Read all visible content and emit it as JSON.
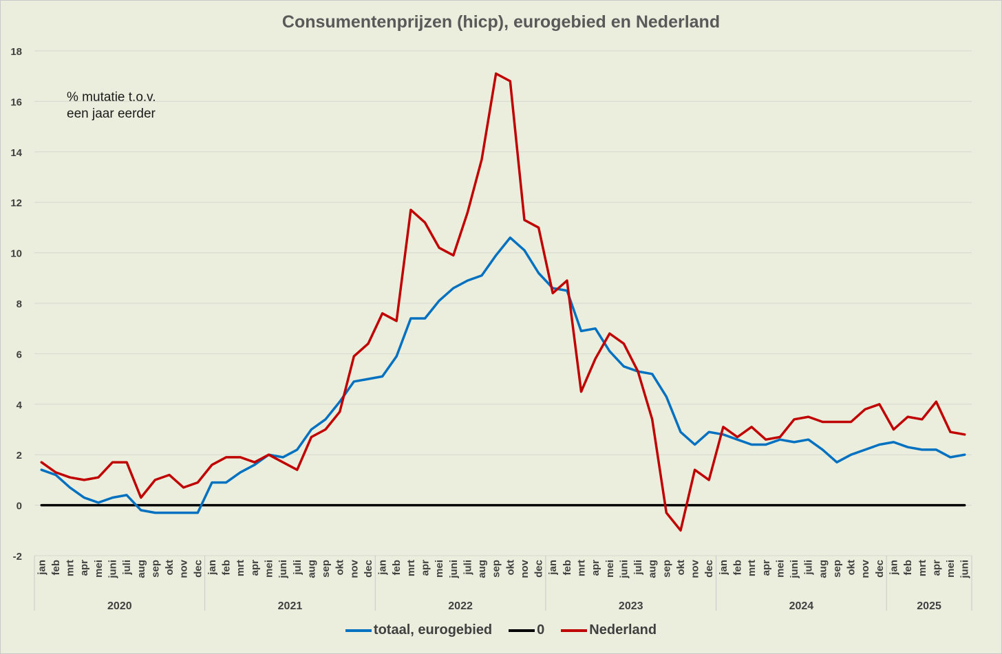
{
  "chart_data": {
    "type": "line",
    "title": "Consumentenprijzen (hicp), eurogebied en Nederland",
    "annotation": [
      "% mutatie t.o.v.",
      "een jaar eerder"
    ],
    "ylim": [
      -2,
      18
    ],
    "yticks": [
      "-2",
      "0",
      "2",
      "4",
      "6",
      "8",
      "10",
      "12",
      "14",
      "16",
      "18"
    ],
    "grid": "horizontal",
    "legend_position": "bottom",
    "years": [
      {
        "label": "2020",
        "months": 12
      },
      {
        "label": "2021",
        "months": 12
      },
      {
        "label": "2022",
        "months": 12
      },
      {
        "label": "2023",
        "months": 12
      },
      {
        "label": "2024",
        "months": 12
      },
      {
        "label": "2025",
        "months": 6
      }
    ],
    "x": [
      "jan",
      "feb",
      "mrt",
      "apr",
      "mei",
      "juni",
      "juli",
      "aug",
      "sep",
      "okt",
      "nov",
      "dec",
      "jan",
      "feb",
      "mrt",
      "apr",
      "mei",
      "juni",
      "juli",
      "aug",
      "sep",
      "okt",
      "nov",
      "dec",
      "jan",
      "feb",
      "mrt",
      "apr",
      "mei",
      "juni",
      "juli",
      "aug",
      "sep",
      "okt",
      "nov",
      "dec",
      "jan",
      "feb",
      "mrt",
      "apr",
      "mei",
      "juni",
      "juli",
      "aug",
      "sep",
      "okt",
      "nov",
      "dec",
      "jan",
      "feb",
      "mrt",
      "apr",
      "mei",
      "juni",
      "juli",
      "aug",
      "sep",
      "okt",
      "nov",
      "dec",
      "jan",
      "feb",
      "mrt",
      "apr",
      "mei",
      "juni"
    ],
    "series": [
      {
        "name": "totaal, eurogebied",
        "color": "#0070c0",
        "values": [
          1.4,
          1.2,
          0.7,
          0.3,
          0.1,
          0.3,
          0.4,
          -0.2,
          -0.3,
          -0.3,
          -0.3,
          -0.3,
          0.9,
          0.9,
          1.3,
          1.6,
          2.0,
          1.9,
          2.2,
          3.0,
          3.4,
          4.1,
          4.9,
          5.0,
          5.1,
          5.9,
          7.4,
          7.4,
          8.1,
          8.6,
          8.9,
          9.1,
          9.9,
          10.6,
          10.1,
          9.2,
          8.6,
          8.5,
          6.9,
          7.0,
          6.1,
          5.5,
          5.3,
          5.2,
          4.3,
          2.9,
          2.4,
          2.9,
          2.8,
          2.6,
          2.4,
          2.4,
          2.6,
          2.5,
          2.6,
          2.2,
          1.7,
          2.0,
          2.2,
          2.4,
          2.5,
          2.3,
          2.2,
          2.2,
          1.9,
          2.0
        ]
      },
      {
        "name": "0",
        "color": "#000000",
        "values": [
          0,
          0,
          0,
          0,
          0,
          0,
          0,
          0,
          0,
          0,
          0,
          0,
          0,
          0,
          0,
          0,
          0,
          0,
          0,
          0,
          0,
          0,
          0,
          0,
          0,
          0,
          0,
          0,
          0,
          0,
          0,
          0,
          0,
          0,
          0,
          0,
          0,
          0,
          0,
          0,
          0,
          0,
          0,
          0,
          0,
          0,
          0,
          0,
          0,
          0,
          0,
          0,
          0,
          0,
          0,
          0,
          0,
          0,
          0,
          0,
          0,
          0,
          0,
          0,
          0,
          0
        ]
      },
      {
        "name": "Nederland",
        "color": "#c00000",
        "values": [
          1.7,
          1.3,
          1.1,
          1.0,
          1.1,
          1.7,
          1.7,
          0.3,
          1.0,
          1.2,
          0.7,
          0.9,
          1.6,
          1.9,
          1.9,
          1.7,
          2.0,
          1.7,
          1.4,
          2.7,
          3.0,
          3.7,
          5.9,
          6.4,
          7.6,
          7.3,
          11.7,
          11.2,
          10.2,
          9.9,
          11.6,
          13.7,
          17.1,
          16.8,
          11.3,
          11.0,
          8.4,
          8.9,
          4.5,
          5.8,
          6.8,
          6.4,
          5.3,
          3.4,
          -0.3,
          -1.0,
          1.4,
          1.0,
          3.1,
          2.7,
          3.1,
          2.6,
          2.7,
          3.4,
          3.5,
          3.3,
          3.3,
          3.3,
          3.8,
          4.0,
          3.0,
          3.5,
          3.4,
          4.1,
          2.9,
          2.8
        ]
      }
    ]
  }
}
